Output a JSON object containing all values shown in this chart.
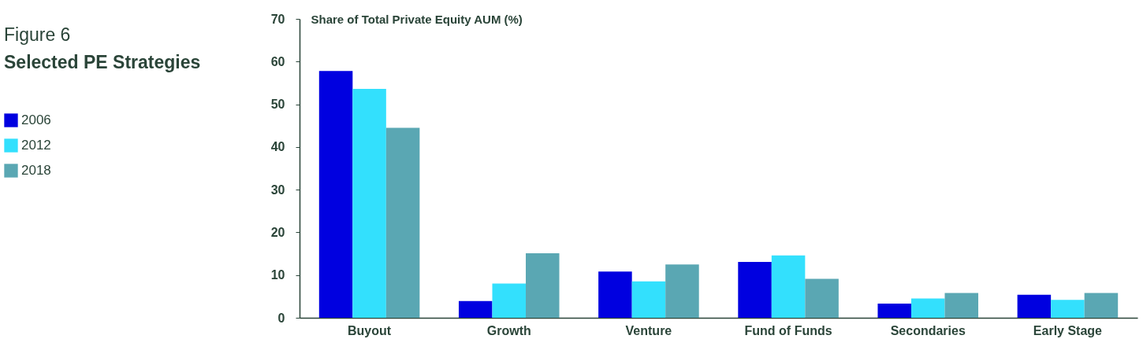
{
  "chart_data": {
    "type": "bar",
    "title": "Figure 6",
    "subtitle": "Selected PE Strategies",
    "ylabel": "Share of Total Private Equity AUM (%)",
    "categories": [
      "Buyout",
      "Growth",
      "Venture",
      "Fund of Funds",
      "Secondaries",
      "Early Stage"
    ],
    "series": [
      {
        "name": "2006",
        "color": "#0000e0",
        "values": [
          57.8,
          3.9,
          10.8,
          13.1,
          3.3,
          5.4
        ]
      },
      {
        "name": "2012",
        "color": "#33e0fd",
        "values": [
          53.6,
          8.0,
          8.5,
          14.6,
          4.5,
          4.2
        ]
      },
      {
        "name": "2018",
        "color": "#5aa7b3",
        "values": [
          44.5,
          15.1,
          12.5,
          9.1,
          5.8,
          5.8
        ]
      }
    ],
    "ylim": [
      0,
      70
    ],
    "yticks": [
      0,
      10,
      20,
      30,
      40,
      50,
      60,
      70
    ],
    "grid": false,
    "legend": "left"
  }
}
